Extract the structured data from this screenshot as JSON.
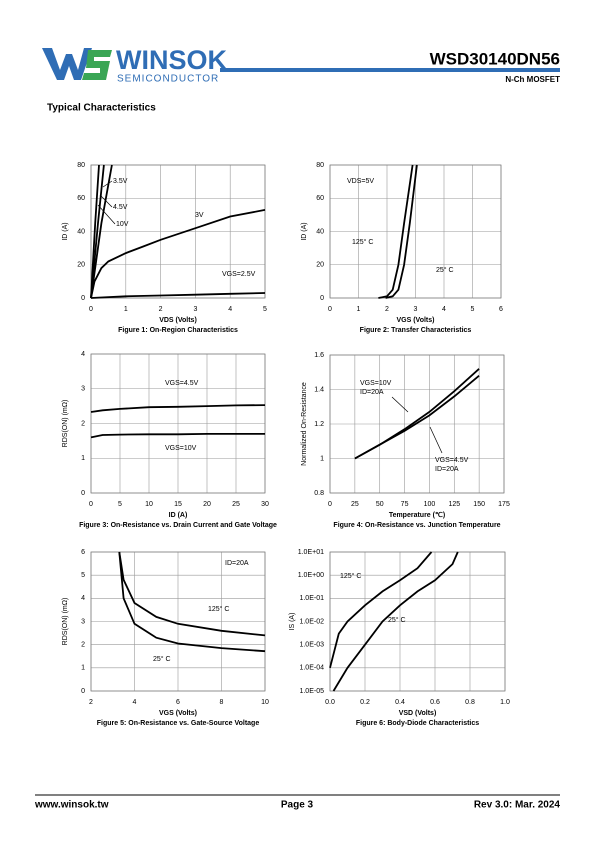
{
  "header": {
    "logo_text": "WINSOK",
    "logo_subtext": "SEMICONDUCTOR",
    "part_number": "WSD30140DN56",
    "device_type": "N-Ch MOSFET"
  },
  "section_title": "Typical Characteristics",
  "chart_data": [
    {
      "type": "line",
      "title": "Figure 1: On-Region Characteristics",
      "x_label": "VDS (Volts)",
      "y_label": "ID (A)",
      "xlim": [
        0,
        5
      ],
      "ylim": [
        0,
        80
      ],
      "xticks": [
        0,
        1,
        2,
        3,
        4,
        5
      ],
      "yticks": [
        0,
        20,
        40,
        60,
        80
      ],
      "grid": true,
      "series": [
        {
          "name": "VGS=2.5V",
          "color": "#000000",
          "x": [
            0,
            1,
            2,
            3,
            4,
            5
          ],
          "values": [
            0,
            1,
            1.5,
            2,
            2.5,
            3
          ]
        },
        {
          "name": "3V",
          "color": "#000000",
          "x": [
            0,
            0.1,
            0.3,
            0.5,
            1,
            1.5,
            2,
            3,
            4,
            5
          ],
          "values": [
            0,
            10,
            18,
            22,
            27,
            31,
            35,
            42,
            49,
            53
          ]
        },
        {
          "name": "3.5V",
          "color": "#000000",
          "x": [
            0,
            0.3,
            0.6
          ],
          "values": [
            0,
            45,
            80
          ]
        },
        {
          "name": "4.5V",
          "color": "#000000",
          "x": [
            0,
            0.2,
            0.37
          ],
          "values": [
            0,
            45,
            80
          ]
        },
        {
          "name": "10V",
          "color": "#000000",
          "x": [
            0,
            0.12,
            0.23
          ],
          "values": [
            0,
            45,
            80
          ]
        }
      ],
      "annotations": []
    },
    {
      "type": "line",
      "title": "Figure 2: Transfer Characteristics",
      "x_label": "VGS (Volts)",
      "y_label": "ID (A)",
      "xlim": [
        0,
        6
      ],
      "ylim": [
        0,
        80
      ],
      "xticks": [
        0,
        1,
        2,
        3,
        4,
        5,
        6
      ],
      "yticks": [
        0,
        20,
        40,
        60,
        80
      ],
      "grid": true,
      "series": [
        {
          "name": "125° C",
          "color": "#000000",
          "x": [
            1.7,
            2,
            2.2,
            2.4,
            2.6,
            2.9
          ],
          "values": [
            0,
            1,
            5,
            20,
            45,
            80
          ]
        },
        {
          "name": "25° C",
          "color": "#000000",
          "x": [
            1.95,
            2.2,
            2.4,
            2.6,
            2.8,
            3.05
          ],
          "values": [
            0,
            1,
            5,
            20,
            45,
            80
          ]
        }
      ],
      "annotations": [
        "VDS=5V"
      ]
    },
    {
      "type": "line",
      "title": "Figure 3: On-Resistance vs. Drain Current and Gate Voltage",
      "x_label": "ID (A)",
      "y_label": "RDS(ON) (mΩ)",
      "xlim": [
        0,
        30
      ],
      "ylim": [
        0,
        4
      ],
      "xticks": [
        0,
        5,
        10,
        15,
        20,
        25,
        30
      ],
      "yticks": [
        0,
        1,
        2,
        3,
        4
      ],
      "grid": true,
      "series": [
        {
          "name": "VGS=4.5V",
          "color": "#000000",
          "x": [
            0,
            2,
            5,
            10,
            15,
            20,
            25,
            30
          ],
          "values": [
            2.33,
            2.38,
            2.42,
            2.47,
            2.48,
            2.5,
            2.52,
            2.53
          ]
        },
        {
          "name": "VGS=10V",
          "color": "#000000",
          "x": [
            0,
            2,
            5,
            10,
            15,
            20,
            25,
            30
          ],
          "values": [
            1.6,
            1.67,
            1.68,
            1.69,
            1.69,
            1.7,
            1.7,
            1.7
          ]
        }
      ],
      "annotations": []
    },
    {
      "type": "line",
      "title": "Figure 4: On-Resistance vs. Junction Temperature",
      "x_label": "Temperature (℃)",
      "y_label": "Normalized On-Resistance",
      "xlim": [
        0,
        175
      ],
      "ylim": [
        0.8,
        1.6
      ],
      "xticks": [
        0,
        25,
        50,
        75,
        100,
        125,
        150,
        175
      ],
      "yticks": [
        0.8,
        1,
        1.2,
        1.4,
        1.6
      ],
      "grid": true,
      "series": [
        {
          "name": "VGS=10V",
          "color": "#000000",
          "x": [
            25,
            50,
            75,
            100,
            125,
            150
          ],
          "values": [
            1,
            1.08,
            1.17,
            1.27,
            1.39,
            1.52
          ]
        },
        {
          "name": "VGS=4.5V",
          "color": "#000000",
          "x": [
            25,
            50,
            75,
            100,
            125,
            150
          ],
          "values": [
            1,
            1.08,
            1.16,
            1.25,
            1.36,
            1.48
          ]
        }
      ],
      "annotations": [
        "ID=20A",
        "ID=20A"
      ]
    },
    {
      "type": "line",
      "title": "Figure 5: On-Resistance vs. Gate-Source Voltage",
      "x_label": "VGS (Volts)",
      "y_label": "RDS(ON) (mΩ)",
      "xlim": [
        2,
        10
      ],
      "ylim": [
        0,
        6
      ],
      "xticks": [
        2,
        4,
        6,
        8,
        10
      ],
      "yticks": [
        0,
        1,
        2,
        3,
        4,
        5,
        6
      ],
      "grid": true,
      "series": [
        {
          "name": "125° C",
          "color": "#000000",
          "x": [
            3.3,
            3.5,
            4,
            5,
            6,
            8,
            10
          ],
          "values": [
            6,
            4.8,
            3.8,
            3.2,
            2.9,
            2.6,
            2.4
          ]
        },
        {
          "name": "25° C",
          "color": "#000000",
          "x": [
            3.3,
            3.5,
            4,
            5,
            6,
            8,
            10
          ],
          "values": [
            6,
            4,
            2.9,
            2.3,
            2.05,
            1.85,
            1.72
          ]
        }
      ],
      "annotations": [
        "ID=20A"
      ]
    },
    {
      "type": "line",
      "title": "Figure 6: Body-Diode Characteristics",
      "x_label": "VSD (Volts)",
      "y_label": "IS (A)",
      "xlim": [
        0,
        1
      ],
      "ylim": [
        1e-05,
        10
      ],
      "log_y": true,
      "xticks": [
        {
          "value": 0,
          "label": "0.0"
        },
        0.2,
        0.4,
        0.6,
        0.8,
        {
          "value": 1,
          "label": "1.0"
        }
      ],
      "yticks": [
        {
          "value": 1e-05,
          "label": "1.0E-05"
        },
        {
          "value": 0.0001,
          "label": "1.0E-04"
        },
        {
          "value": 0.001,
          "label": "1.0E-03"
        },
        {
          "value": 0.01,
          "label": "1.0E-02"
        },
        {
          "value": 0.1,
          "label": "1.0E-01"
        },
        {
          "value": 1,
          "label": "1.0E+00"
        },
        {
          "value": 10,
          "label": "1.0E+01"
        }
      ],
      "grid": true,
      "series": [
        {
          "name": "125° C",
          "color": "#000000",
          "x": [
            0,
            0.05,
            0.1,
            0.2,
            0.3,
            0.4,
            0.5,
            0.58
          ],
          "values": [
            0.0001,
            0.003,
            0.01,
            0.05,
            0.2,
            0.6,
            2,
            10
          ]
        },
        {
          "name": "25° C",
          "color": "#000000",
          "x": [
            0.02,
            0.1,
            0.2,
            0.3,
            0.4,
            0.5,
            0.6,
            0.7,
            0.73
          ],
          "values": [
            1e-05,
            0.0001,
            0.001,
            0.01,
            0.05,
            0.2,
            0.6,
            3,
            10
          ]
        }
      ],
      "annotations": []
    }
  ],
  "footer": {
    "website": "www.winsok.tw",
    "page": "Page 3",
    "revision": "Rev 3.0: Mar. 2024"
  }
}
